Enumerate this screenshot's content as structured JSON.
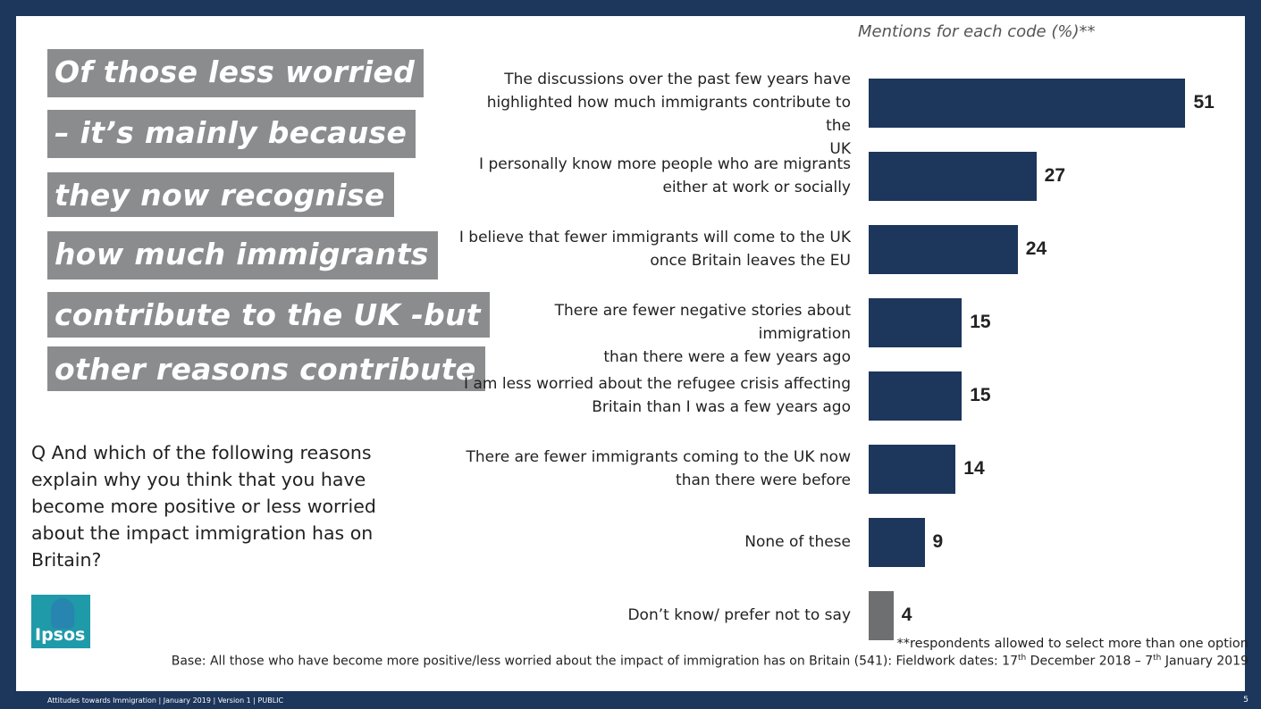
{
  "headline": {
    "lines": [
      "Of those less worried",
      "– it’s mainly because",
      "they now recognise",
      "how much immigrants",
      "contribute to the UK -but",
      "other reasons contribute"
    ]
  },
  "question": "Q And which of the following reasons explain why you think that you have become more positive or less worried about the impact immigration has on Britain?",
  "logo_text": "Ipsos",
  "axis_caption": "Mentions  for each code (%)**",
  "chart_data": {
    "type": "bar",
    "orientation": "horizontal",
    "categories": [
      "The discussions over the past few years have highlighted how much immigrants contribute to the UK",
      "I personally know more people who are migrants either at work or socially",
      "I believe that fewer immigrants will come to the UK once Britain leaves the EU",
      "There are fewer negative stories about immigration than there were a few years ago",
      "I am less worried about the refugee crisis affecting Britain than I was a few years ago",
      "There are fewer immigrants coming to the UK now than there were before",
      "None of these",
      "Don’t know/ prefer not to say"
    ],
    "values": [
      51,
      27,
      24,
      15,
      15,
      14,
      9,
      4
    ],
    "bar_colors": [
      "#1d365c",
      "#1d365c",
      "#1d365c",
      "#1d365c",
      "#1d365c",
      "#1d365c",
      "#1d365c",
      "#6e6f71"
    ],
    "xlim": [
      0,
      51
    ],
    "grid": false,
    "legend": "none"
  },
  "footnote": "**respondents allowed to select more than one option",
  "base": {
    "text_a": "Base: All those who have become more positive/less worried about the impact of immigration has on Britain (541): Fieldwork dates: 17",
    "sup_a": "th",
    "text_b": " December 2018 – 7",
    "sup_b": "th",
    "text_c": " January 2019"
  },
  "footer": "Attitudes  towards Immigration  | January 2019 | Version  1 | PUBLIC",
  "page_number": "5",
  "colors": {
    "background_frame": "#1d365c",
    "headline_box": "#8b8c8e",
    "bar_primary": "#1d365c",
    "bar_secondary": "#6e6f71"
  }
}
